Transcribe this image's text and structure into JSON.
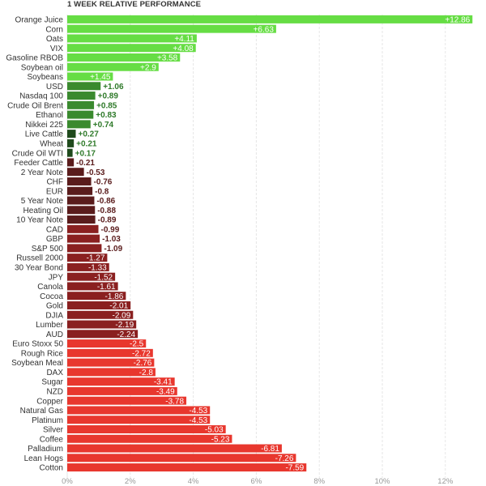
{
  "chart_data": {
    "type": "bar",
    "orientation": "horizontal",
    "title": "1 WEEK RELATIVE PERFORMANCE",
    "xlim": [
      0,
      13
    ],
    "x_ticks": [
      0,
      2,
      4,
      6,
      8,
      10,
      12
    ],
    "x_tick_labels": [
      "0%",
      "2%",
      "4%",
      "6%",
      "8%",
      "10%",
      "12%"
    ],
    "grid": true,
    "colors": {
      "strong_positive": "#66dd44",
      "mid_positive": "#3a8a2e",
      "small_positive": "#1f4a1c",
      "small_negative": "#5a1c1c",
      "mid_negative": "#8a2020",
      "strong_negative": "#e8372e",
      "grid": "#e6e6e6",
      "label_text": "#333333"
    },
    "categories": [
      "Orange Juice",
      "Corn",
      "Oats",
      "VIX",
      "Gasoline RBOB",
      "Soybean oil",
      "Soybeans",
      "USD",
      "Nasdaq 100",
      "Crude Oil Brent",
      "Ethanol",
      "Nikkei 225",
      "Live Cattle",
      "Wheat",
      "Crude Oil WTI",
      "Feeder Cattle",
      "2 Year Note",
      "CHF",
      "EUR",
      "5 Year Note",
      "Heating Oil",
      "10 Year Note",
      "CAD",
      "GBP",
      "S&P 500",
      "Russell 2000",
      "30 Year Bond",
      "JPY",
      "Canola",
      "Cocoa",
      "Gold",
      "DJIA",
      "Lumber",
      "AUD",
      "Euro Stoxx 50",
      "Rough Rice",
      "Soybean Meal",
      "DAX",
      "Sugar",
      "NZD",
      "Copper",
      "Natural Gas",
      "Platinum",
      "Silver",
      "Coffee",
      "Palladium",
      "Lean Hogs",
      "Cotton"
    ],
    "values": [
      12.86,
      6.63,
      4.11,
      4.08,
      3.58,
      2.9,
      1.45,
      1.06,
      0.89,
      0.85,
      0.83,
      0.74,
      0.27,
      0.21,
      0.17,
      -0.21,
      -0.53,
      -0.76,
      -0.8,
      -0.86,
      -0.88,
      -0.89,
      -0.99,
      -1.03,
      -1.09,
      -1.27,
      -1.33,
      -1.52,
      -1.61,
      -1.86,
      -2.01,
      -2.09,
      -2.19,
      -2.24,
      -2.5,
      -2.72,
      -2.76,
      -2.8,
      -3.41,
      -3.49,
      -3.78,
      -4.53,
      -4.53,
      -5.03,
      -5.23,
      -6.81,
      -7.26,
      -7.59
    ],
    "value_labels": [
      "+12.86",
      "+6.63",
      "+4.11",
      "+4.08",
      "+3.58",
      "+2.9",
      "+1.45",
      "+1.06",
      "+0.89",
      "+0.85",
      "+0.83",
      "+0.74",
      "+0.27",
      "+0.21",
      "+0.17",
      "-0.21",
      "-0.53",
      "-0.76",
      "-0.8",
      "-0.86",
      "-0.88",
      "-0.89",
      "-0.99",
      "-1.03",
      "-1.09",
      "-1.27",
      "-1.33",
      "-1.52",
      "-1.61",
      "-1.86",
      "-2.01",
      "-2.09",
      "-2.19",
      "-2.24",
      "-2.5",
      "-2.72",
      "-2.76",
      "-2.8",
      "-3.41",
      "-3.49",
      "-3.78",
      "-4.53",
      "-4.53",
      "-5.03",
      "-5.23",
      "-6.81",
      "-7.26",
      "-7.59"
    ]
  }
}
